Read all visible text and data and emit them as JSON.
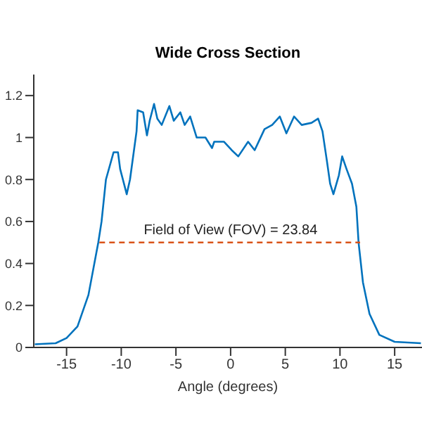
{
  "chart_data": {
    "type": "line",
    "title": "Wide Cross Section",
    "xlabel": "Angle (degrees)",
    "xlim": [
      -18,
      17.5
    ],
    "ylim": [
      0,
      1.3
    ],
    "xticks": [
      -15,
      -10,
      -5,
      0,
      5,
      10,
      15
    ],
    "yticks": [
      0,
      0.2,
      0.4,
      0.6,
      0.8,
      1,
      1.2
    ],
    "marker": "none",
    "series": [
      {
        "color": "#0072bd",
        "line_style": "solid",
        "x": [
          -17.9,
          -16,
          -15,
          -14,
          -13,
          -12.1,
          -11.8,
          -11.4,
          -10.7,
          -10.3,
          -10.1,
          -9.5,
          -9.2,
          -8.6,
          -8.5,
          -8,
          -7.65,
          -7.4,
          -7,
          -6.7,
          -6.3,
          -5.6,
          -5.2,
          -4.6,
          -4.2,
          -3.7,
          -3.1,
          -2.3,
          -1.7,
          -1.5,
          -0.6,
          0.1,
          0.7,
          1.6,
          2.2,
          3.1,
          3.8,
          4.5,
          5.1,
          5.8,
          6.5,
          7.4,
          8,
          8.4,
          8.8,
          9.1,
          9.4,
          9.9,
          10.2,
          10.6,
          11.1,
          11.5,
          11.7,
          12.1,
          12.7,
          13.6,
          15,
          17.4
        ],
        "values": [
          0.015,
          0.02,
          0.045,
          0.1,
          0.25,
          0.5,
          0.6,
          0.8,
          0.93,
          0.93,
          0.85,
          0.73,
          0.8,
          1.03,
          1.13,
          1.12,
          1.01,
          1.08,
          1.16,
          1.09,
          1.06,
          1.15,
          1.08,
          1.12,
          1.06,
          1.1,
          1,
          1,
          0.95,
          0.98,
          0.98,
          0.94,
          0.91,
          0.98,
          0.94,
          1.04,
          1.06,
          1.1,
          1.02,
          1.1,
          1.06,
          1.07,
          1.09,
          1.03,
          0.89,
          0.78,
          0.73,
          0.82,
          0.91,
          0.85,
          0.78,
          0.67,
          0.5,
          0.31,
          0.16,
          0.06,
          0.027,
          0.02
        ]
      },
      {
        "color": "#d95319",
        "line_style": "dashed",
        "x": [
          -12,
          11.84
        ],
        "values": [
          0.5,
          0.5
        ]
      }
    ],
    "annotations": [
      {
        "text": "Field of View (FOV) = 23.84",
        "x": 0,
        "y": 0.5
      }
    ]
  }
}
